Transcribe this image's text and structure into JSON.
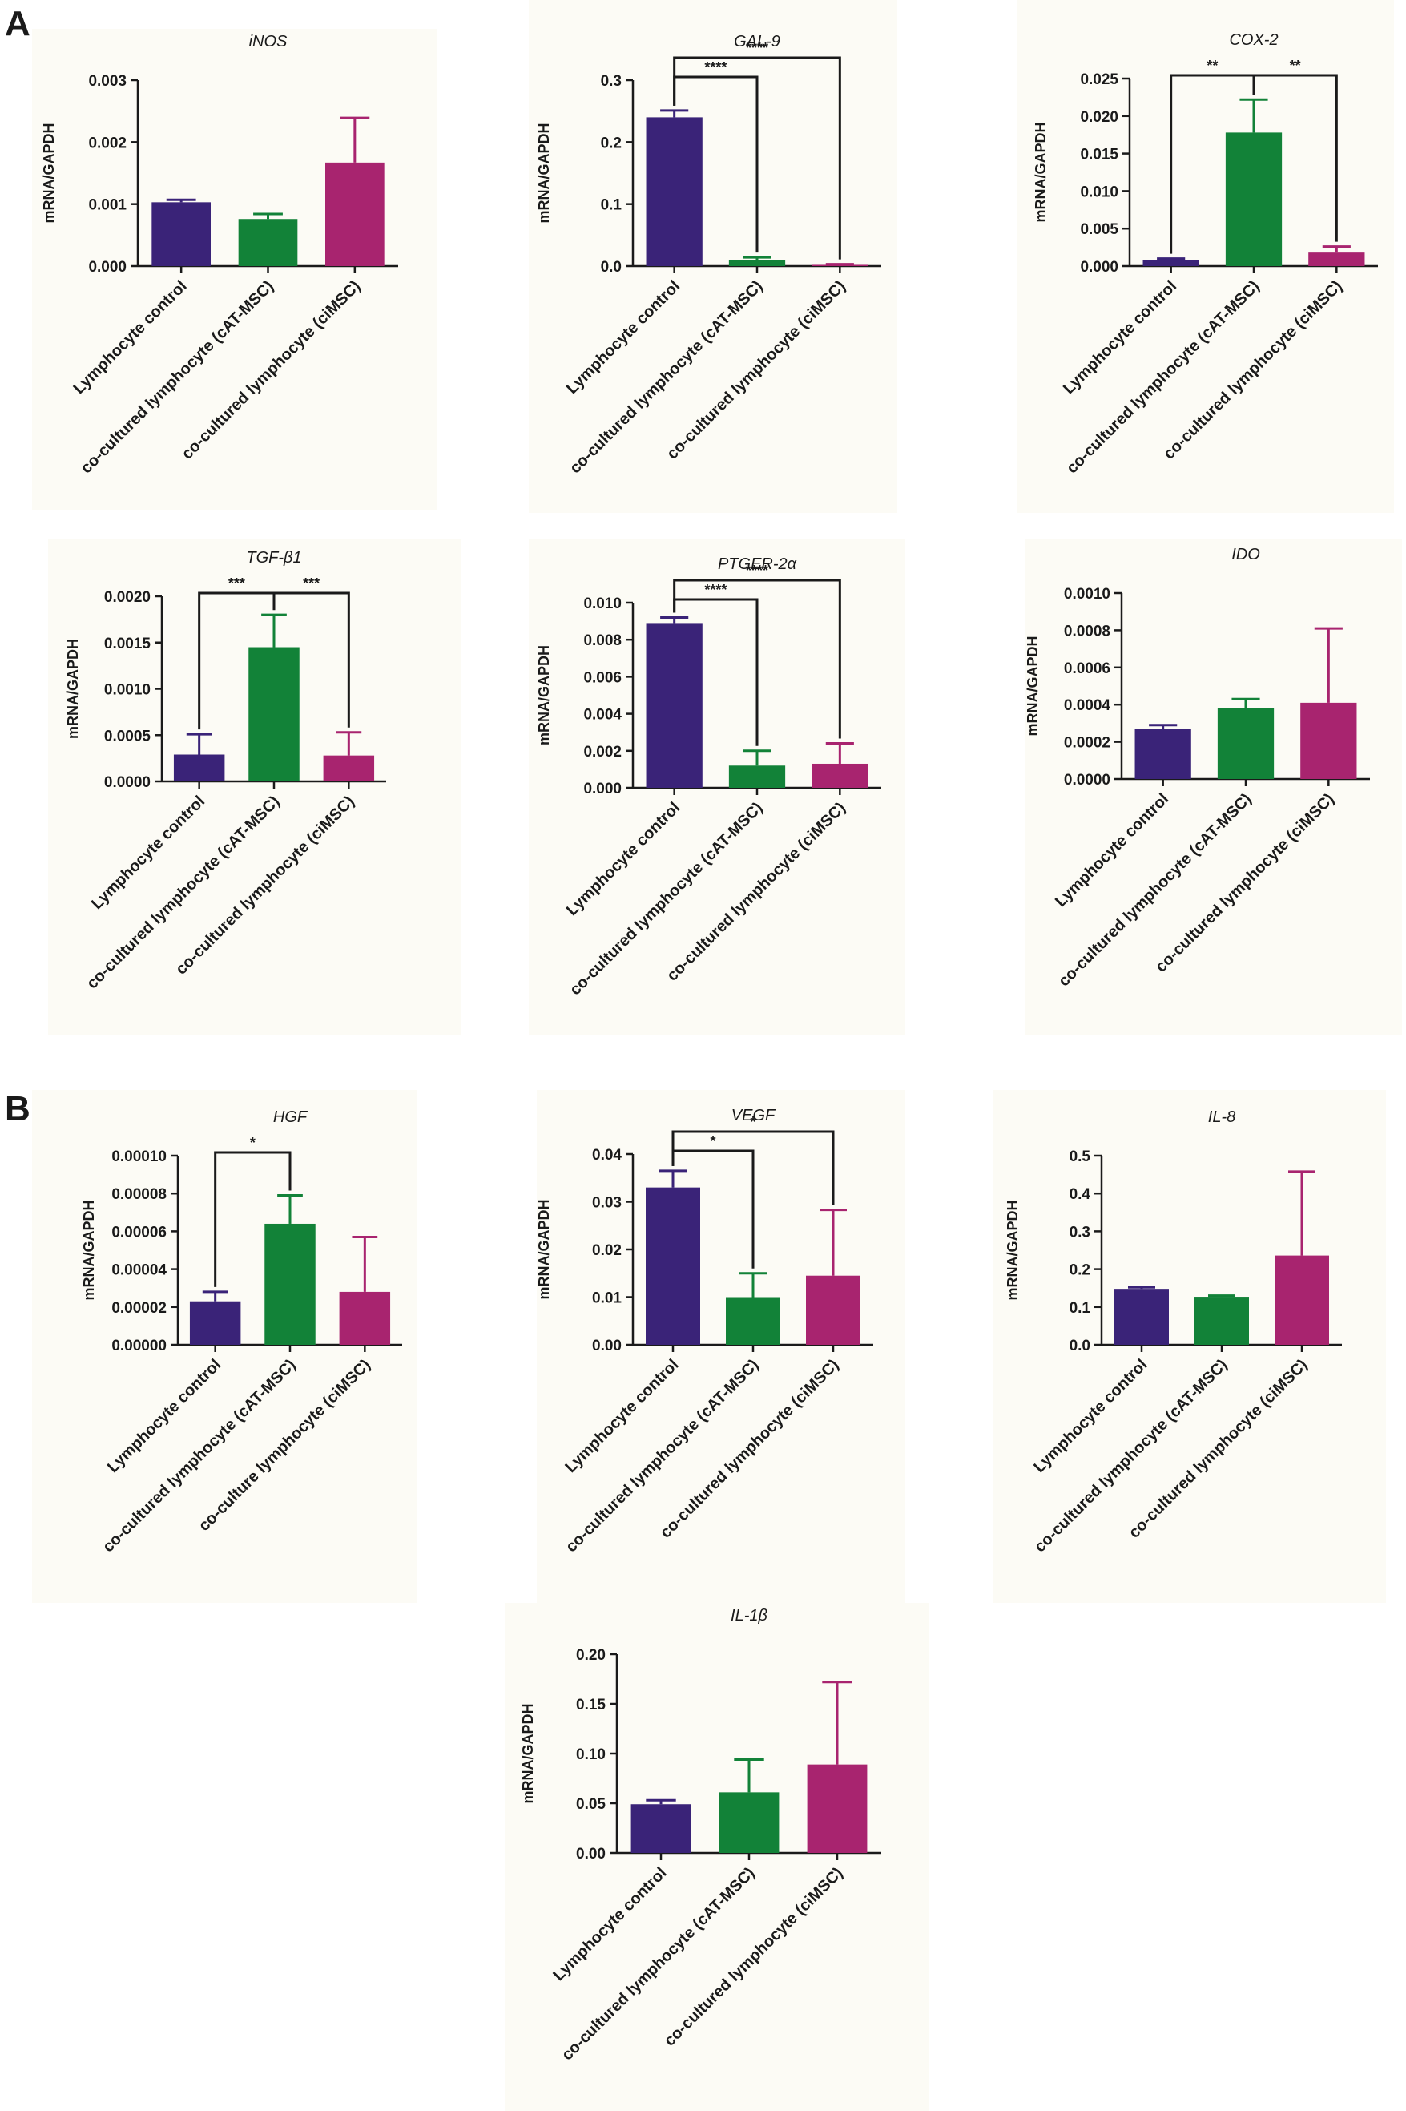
{
  "panels": [
    {
      "letter": "A"
    },
    {
      "letter": "B"
    }
  ],
  "colors": {
    "lymphocyte_control": "#3a2378",
    "cat_msc": "#128238",
    "cimsc": "#a8246f",
    "background": "#fcfbf5",
    "axis": "#1a1a1a"
  },
  "chart_data": [
    {
      "type": "bar",
      "title": "iNOS",
      "ylabel": "mRNA/GAPDH",
      "categories": [
        "Lymphocyte control",
        "co-cultured lymphocyte (cAT-MSC)",
        "co-cultured lymphocyte (ciMSC)"
      ],
      "values": [
        0.00103,
        0.00076,
        0.00167
      ],
      "errors": [
        4e-05,
        8e-05,
        0.00072
      ],
      "ylim": [
        0,
        0.003
      ],
      "ticks": [
        "0.000",
        "0.001",
        "0.002",
        "0.003"
      ],
      "significance": []
    },
    {
      "type": "bar",
      "title": "GAL-9",
      "ylabel": "mRNA/GAPDH",
      "categories": [
        "Lymphocyte control",
        "co-cultured lymphocyte (cAT-MSC)",
        "co-cultured lymphocyte (ciMSC)"
      ],
      "values": [
        0.24,
        0.01,
        0.002
      ],
      "errors": [
        0.011,
        0.004,
        0.001
      ],
      "ylim": [
        0,
        0.3
      ],
      "ticks": [
        "0.0",
        "0.1",
        "0.2",
        "0.3"
      ],
      "significance": [
        {
          "from": 0,
          "to": 1,
          "label": "****"
        },
        {
          "from": 0,
          "to": 2,
          "label": "****"
        }
      ]
    },
    {
      "type": "bar",
      "title": "COX-2",
      "ylabel": "mRNA/GAPDH",
      "categories": [
        "Lymphocyte control",
        "co-cultured lymphocyte (cAT-MSC)",
        "co-cultured lymphocyte (ciMSC)"
      ],
      "values": [
        0.0008,
        0.0178,
        0.0018
      ],
      "errors": [
        0.0002,
        0.0044,
        0.0008
      ],
      "ylim": [
        0,
        0.025
      ],
      "ticks": [
        "0.000",
        "0.005",
        "0.010",
        "0.015",
        "0.020",
        "0.025"
      ],
      "significance": [
        {
          "from": 0,
          "to": 1,
          "label": "**"
        },
        {
          "from": 1,
          "to": 2,
          "label": "**"
        }
      ]
    },
    {
      "type": "bar",
      "title": "TGF-β1",
      "ylabel": "mRNA/GAPDH",
      "categories": [
        "Lymphocyte control",
        "co-cultured lymphocyte (cAT-MSC)",
        "co-cultured lymphocyte (ciMSC)"
      ],
      "values": [
        0.00029,
        0.00145,
        0.00028
      ],
      "errors": [
        0.00022,
        0.00035,
        0.00025
      ],
      "ylim": [
        0,
        0.002
      ],
      "ticks": [
        "0.0000",
        "0.0005",
        "0.0010",
        "0.0015",
        "0.0020"
      ],
      "significance": [
        {
          "from": 0,
          "to": 1,
          "label": "***"
        },
        {
          "from": 1,
          "to": 2,
          "label": "***"
        }
      ]
    },
    {
      "type": "bar",
      "title": "PTGER-2α",
      "ylabel": "mRNA/GAPDH",
      "categories": [
        "Lymphocyte control",
        "co-cultured lymphocyte (cAT-MSC)",
        "co-cultured lymphocyte (ciMSC)"
      ],
      "values": [
        0.0089,
        0.0012,
        0.0013
      ],
      "errors": [
        0.0003,
        0.0008,
        0.0011
      ],
      "ylim": [
        0,
        0.01
      ],
      "ticks": [
        "0.000",
        "0.002",
        "0.004",
        "0.006",
        "0.008",
        "0.010"
      ],
      "significance": [
        {
          "from": 0,
          "to": 1,
          "label": "****"
        },
        {
          "from": 0,
          "to": 2,
          "label": "****"
        }
      ]
    },
    {
      "type": "bar",
      "title": "IDO",
      "ylabel": "mRNA/GAPDH",
      "categories": [
        "Lymphocyte control",
        "co-cultured lymphocyte (cAT-MSC)",
        "co-cultured lymphocyte (ciMSC)"
      ],
      "values": [
        0.00027,
        0.00038,
        0.00041
      ],
      "errors": [
        2e-05,
        5e-05,
        0.0004
      ],
      "ylim": [
        0,
        0.001
      ],
      "ticks": [
        "0.0000",
        "0.0002",
        "0.0004",
        "0.0006",
        "0.0008",
        "0.0010"
      ],
      "significance": []
    },
    {
      "type": "bar",
      "title": "HGF",
      "ylabel": "mRNA/GAPDH",
      "categories": [
        "Lymphocyte control",
        "co-cultured lymphocyte (cAT-MSC)",
        "co-culture lymphocyte (ciMSC)"
      ],
      "values": [
        2.3e-05,
        6.4e-05,
        2.8e-05
      ],
      "errors": [
        5e-06,
        1.5e-05,
        2.9e-05
      ],
      "ylim": [
        0,
        0.0001
      ],
      "ticks": [
        "0.00000",
        "0.00002",
        "0.00004",
        "0.00006",
        "0.00008",
        "0.00010"
      ],
      "significance": [
        {
          "from": 0,
          "to": 1,
          "label": "*"
        }
      ]
    },
    {
      "type": "bar",
      "title": "VEGF",
      "ylabel": "mRNA/GAPDH",
      "categories": [
        "Lymphocyte control",
        "co-cultured lymphocyte (cAT-MSC)",
        "co-cultured lymphocyte (ciMSC)"
      ],
      "values": [
        0.033,
        0.01,
        0.0145
      ],
      "errors": [
        0.0035,
        0.005,
        0.0138
      ],
      "ylim": [
        0,
        0.04
      ],
      "ticks": [
        "0.00",
        "0.01",
        "0.02",
        "0.03",
        "0.04"
      ],
      "significance": [
        {
          "from": 0,
          "to": 1,
          "label": "*"
        },
        {
          "from": 0,
          "to": 2,
          "label": "*"
        }
      ]
    },
    {
      "type": "bar",
      "title": "IL-8",
      "ylabel": "mRNA/GAPDH",
      "categories": [
        "Lymphocyte control",
        "co-cultured lymphocyte (cAT-MSC)",
        "co-cultured lymphocyte (ciMSC)"
      ],
      "values": [
        0.148,
        0.127,
        0.236
      ],
      "errors": [
        0.004,
        0.003,
        0.222
      ],
      "ylim": [
        0,
        0.5
      ],
      "ticks": [
        "0.0",
        "0.1",
        "0.2",
        "0.3",
        "0.4",
        "0.5"
      ],
      "significance": []
    },
    {
      "type": "bar",
      "title": "IL-1β",
      "ylabel": "mRNA/GAPDH",
      "categories": [
        "Lymphocyte control",
        "co-cultured lymphocyte (cAT-MSC)",
        "co-cultured lymphocyte (ciMSC)"
      ],
      "values": [
        0.049,
        0.061,
        0.089
      ],
      "errors": [
        0.004,
        0.033,
        0.083
      ],
      "ylim": [
        0,
        0.2
      ],
      "ticks": [
        "0.00",
        "0.05",
        "0.10",
        "0.15",
        "0.20"
      ],
      "significance": []
    }
  ]
}
